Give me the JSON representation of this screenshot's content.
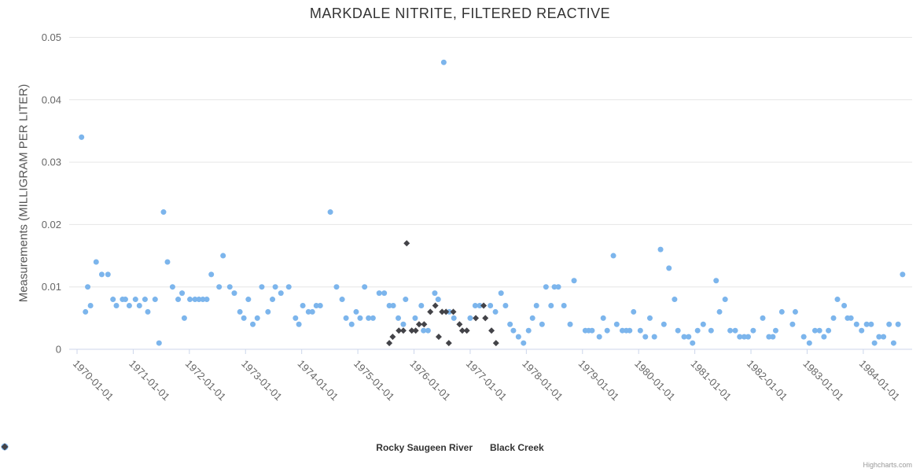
{
  "title": "MARKDALE NITRITE, FILTERED REACTIVE",
  "credit": "Highcharts.com",
  "chart_data": {
    "type": "scatter",
    "title": "MARKDALE NITRITE, FILTERED REACTIVE",
    "xlabel": "",
    "ylabel": "Measurements (MILLIGRAM PER LITER)",
    "ylim": [
      0,
      0.05
    ],
    "ytick_interval": 0.01,
    "x_unit": "decimal_year",
    "xlim_years": [
      1969.86,
      1984.87
    ],
    "grid": "horizontal-only",
    "legend_position": "bottom-center",
    "palette": {
      "grid_color": "#e6e6e6",
      "axis_color": "#ccd6eb",
      "label_color": "#666666"
    },
    "yticks": [
      {
        "value": 0,
        "label": "0"
      },
      {
        "value": 0.01,
        "label": "0.01"
      },
      {
        "value": 0.02,
        "label": "0.02"
      },
      {
        "value": 0.03,
        "label": "0.03"
      },
      {
        "value": 0.04,
        "label": "0.04"
      },
      {
        "value": 0.05,
        "label": "0.05"
      }
    ],
    "xticks": [
      {
        "year": 1970,
        "label": "1970-01-01"
      },
      {
        "year": 1971,
        "label": "1971-01-01"
      },
      {
        "year": 1972,
        "label": "1972-01-01"
      },
      {
        "year": 1973,
        "label": "1973-01-01"
      },
      {
        "year": 1974,
        "label": "1974-01-01"
      },
      {
        "year": 1975,
        "label": "1975-01-01"
      },
      {
        "year": 1976,
        "label": "1976-01-01"
      },
      {
        "year": 1977,
        "label": "1977-01-01"
      },
      {
        "year": 1978,
        "label": "1978-01-01"
      },
      {
        "year": 1979,
        "label": "1979-01-01"
      },
      {
        "year": 1980,
        "label": "1980-01-01"
      },
      {
        "year": 1981,
        "label": "1981-01-01"
      },
      {
        "year": 1982,
        "label": "1982-01-01"
      },
      {
        "year": 1983,
        "label": "1983-01-01"
      },
      {
        "year": 1984,
        "label": "1984-01-01"
      }
    ],
    "series": [
      {
        "name": "Rocky Saugeen River",
        "color": "#7cb5ec",
        "marker": "circle",
        "points": [
          [
            1970.08,
            0.034
          ],
          [
            1970.15,
            0.006
          ],
          [
            1970.19,
            0.01
          ],
          [
            1970.24,
            0.007
          ],
          [
            1970.34,
            0.014
          ],
          [
            1970.44,
            0.012
          ],
          [
            1970.55,
            0.012
          ],
          [
            1970.64,
            0.008
          ],
          [
            1970.7,
            0.007
          ],
          [
            1970.81,
            0.008
          ],
          [
            1970.86,
            0.008
          ],
          [
            1970.93,
            0.007
          ],
          [
            1971.04,
            0.008
          ],
          [
            1971.11,
            0.007
          ],
          [
            1971.21,
            0.008
          ],
          [
            1971.26,
            0.006
          ],
          [
            1971.39,
            0.008
          ],
          [
            1971.46,
            0.001
          ],
          [
            1971.54,
            0.022
          ],
          [
            1971.61,
            0.014
          ],
          [
            1971.7,
            0.01
          ],
          [
            1971.8,
            0.008
          ],
          [
            1971.87,
            0.009
          ],
          [
            1971.91,
            0.005
          ],
          [
            1972.01,
            0.008
          ],
          [
            1972.1,
            0.008
          ],
          [
            1972.17,
            0.008
          ],
          [
            1972.24,
            0.008
          ],
          [
            1972.31,
            0.008
          ],
          [
            1972.39,
            0.012
          ],
          [
            1972.53,
            0.01
          ],
          [
            1972.6,
            0.015
          ],
          [
            1972.72,
            0.01
          ],
          [
            1972.8,
            0.009
          ],
          [
            1972.9,
            0.006
          ],
          [
            1972.97,
            0.005
          ],
          [
            1973.05,
            0.008
          ],
          [
            1973.13,
            0.004
          ],
          [
            1973.21,
            0.005
          ],
          [
            1973.29,
            0.01
          ],
          [
            1973.4,
            0.006
          ],
          [
            1973.48,
            0.008
          ],
          [
            1973.53,
            0.01
          ],
          [
            1973.63,
            0.009
          ],
          [
            1973.77,
            0.01
          ],
          [
            1973.89,
            0.005
          ],
          [
            1973.95,
            0.004
          ],
          [
            1974.02,
            0.007
          ],
          [
            1974.12,
            0.006
          ],
          [
            1974.19,
            0.006
          ],
          [
            1974.26,
            0.007
          ],
          [
            1974.33,
            0.007
          ],
          [
            1974.51,
            0.022
          ],
          [
            1974.62,
            0.01
          ],
          [
            1974.72,
            0.008
          ],
          [
            1974.79,
            0.005
          ],
          [
            1974.89,
            0.004
          ],
          [
            1974.97,
            0.006
          ],
          [
            1975.04,
            0.005
          ],
          [
            1975.12,
            0.01
          ],
          [
            1975.19,
            0.005
          ],
          [
            1975.27,
            0.005
          ],
          [
            1975.38,
            0.009
          ],
          [
            1975.47,
            0.009
          ],
          [
            1975.56,
            0.007
          ],
          [
            1975.63,
            0.007
          ],
          [
            1975.72,
            0.005
          ],
          [
            1975.81,
            0.004
          ],
          [
            1975.85,
            0.008
          ],
          [
            1976.02,
            0.005
          ],
          [
            1976.13,
            0.007
          ],
          [
            1976.17,
            0.003
          ],
          [
            1976.25,
            0.003
          ],
          [
            1976.37,
            0.009
          ],
          [
            1976.43,
            0.008
          ],
          [
            1976.53,
            0.046
          ],
          [
            1976.63,
            0.006
          ],
          [
            1976.71,
            0.005
          ],
          [
            1977.0,
            0.005
          ],
          [
            1977.09,
            0.007
          ],
          [
            1977.17,
            0.007
          ],
          [
            1977.36,
            0.007
          ],
          [
            1977.45,
            0.006
          ],
          [
            1977.55,
            0.009
          ],
          [
            1977.63,
            0.007
          ],
          [
            1977.71,
            0.004
          ],
          [
            1977.77,
            0.003
          ],
          [
            1977.86,
            0.002
          ],
          [
            1977.95,
            0.001
          ],
          [
            1978.04,
            0.003
          ],
          [
            1978.11,
            0.005
          ],
          [
            1978.18,
            0.007
          ],
          [
            1978.28,
            0.004
          ],
          [
            1978.35,
            0.01
          ],
          [
            1978.44,
            0.007
          ],
          [
            1978.5,
            0.01
          ],
          [
            1978.57,
            0.01
          ],
          [
            1978.67,
            0.007
          ],
          [
            1978.78,
            0.004
          ],
          [
            1978.85,
            0.011
          ],
          [
            1979.05,
            0.003
          ],
          [
            1979.11,
            0.003
          ],
          [
            1979.17,
            0.003
          ],
          [
            1979.3,
            0.002
          ],
          [
            1979.37,
            0.005
          ],
          [
            1979.44,
            0.003
          ],
          [
            1979.55,
            0.015
          ],
          [
            1979.61,
            0.004
          ],
          [
            1979.71,
            0.003
          ],
          [
            1979.78,
            0.003
          ],
          [
            1979.84,
            0.003
          ],
          [
            1979.91,
            0.006
          ],
          [
            1980.03,
            0.003
          ],
          [
            1980.12,
            0.002
          ],
          [
            1980.2,
            0.005
          ],
          [
            1980.28,
            0.002
          ],
          [
            1980.39,
            0.016
          ],
          [
            1980.45,
            0.004
          ],
          [
            1980.54,
            0.013
          ],
          [
            1980.64,
            0.008
          ],
          [
            1980.7,
            0.003
          ],
          [
            1980.81,
            0.002
          ],
          [
            1980.89,
            0.002
          ],
          [
            1980.96,
            0.001
          ],
          [
            1981.05,
            0.003
          ],
          [
            1981.15,
            0.004
          ],
          [
            1981.29,
            0.003
          ],
          [
            1981.38,
            0.011
          ],
          [
            1981.44,
            0.006
          ],
          [
            1981.54,
            0.008
          ],
          [
            1981.63,
            0.003
          ],
          [
            1981.72,
            0.003
          ],
          [
            1981.8,
            0.002
          ],
          [
            1981.88,
            0.002
          ],
          [
            1981.95,
            0.002
          ],
          [
            1982.04,
            0.003
          ],
          [
            1982.21,
            0.005
          ],
          [
            1982.32,
            0.002
          ],
          [
            1982.39,
            0.002
          ],
          [
            1982.44,
            0.003
          ],
          [
            1982.55,
            0.006
          ],
          [
            1982.74,
            0.004
          ],
          [
            1982.79,
            0.006
          ],
          [
            1982.94,
            0.002
          ],
          [
            1983.04,
            0.001
          ],
          [
            1983.14,
            0.003
          ],
          [
            1983.22,
            0.003
          ],
          [
            1983.3,
            0.002
          ],
          [
            1983.38,
            0.003
          ],
          [
            1983.47,
            0.005
          ],
          [
            1983.54,
            0.008
          ],
          [
            1983.66,
            0.007
          ],
          [
            1983.72,
            0.005
          ],
          [
            1983.78,
            0.005
          ],
          [
            1983.88,
            0.004
          ],
          [
            1983.97,
            0.003
          ],
          [
            1984.06,
            0.004
          ],
          [
            1984.14,
            0.004
          ],
          [
            1984.2,
            0.001
          ],
          [
            1984.28,
            0.002
          ],
          [
            1984.36,
            0.002
          ],
          [
            1984.46,
            0.004
          ],
          [
            1984.54,
            0.001
          ],
          [
            1984.62,
            0.004
          ],
          [
            1984.7,
            0.012
          ]
        ]
      },
      {
        "name": "Black Creek",
        "color": "#434348",
        "marker": "diamond",
        "points": [
          [
            1975.56,
            0.001
          ],
          [
            1975.62,
            0.002
          ],
          [
            1975.73,
            0.003
          ],
          [
            1975.81,
            0.003
          ],
          [
            1975.87,
            0.017
          ],
          [
            1975.96,
            0.003
          ],
          [
            1976.03,
            0.003
          ],
          [
            1976.09,
            0.004
          ],
          [
            1976.18,
            0.004
          ],
          [
            1976.29,
            0.006
          ],
          [
            1976.38,
            0.007
          ],
          [
            1976.44,
            0.002
          ],
          [
            1976.5,
            0.006
          ],
          [
            1976.57,
            0.006
          ],
          [
            1976.62,
            0.001
          ],
          [
            1976.7,
            0.006
          ],
          [
            1976.81,
            0.004
          ],
          [
            1976.86,
            0.003
          ],
          [
            1976.94,
            0.003
          ],
          [
            1977.1,
            0.005
          ],
          [
            1977.24,
            0.007
          ],
          [
            1977.27,
            0.005
          ],
          [
            1977.38,
            0.003
          ],
          [
            1977.46,
            0.001
          ]
        ]
      }
    ]
  }
}
